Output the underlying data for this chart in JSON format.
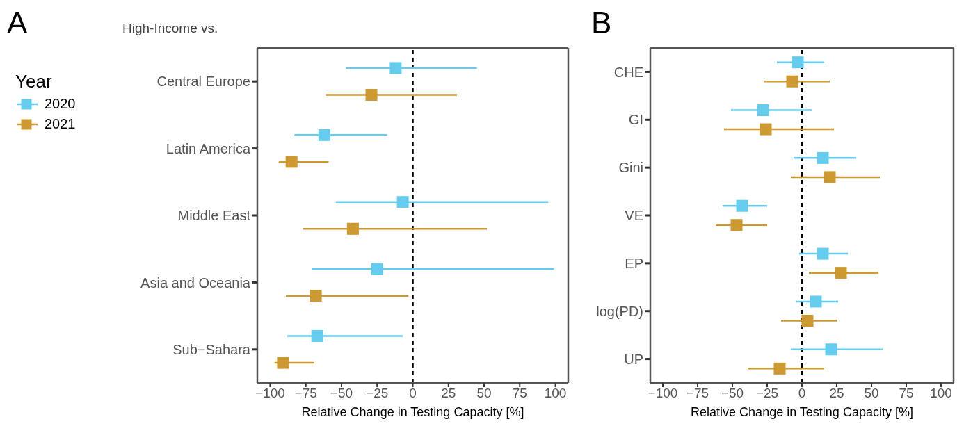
{
  "chart_data": [
    {
      "type": "scatter",
      "title": "A",
      "ylabel": "High-Income vs.",
      "xlabel": "Relative Change in Testing Capacity [%]",
      "orientation": "horizontal",
      "marker": "square",
      "legend": "left",
      "legend_title": "Year",
      "categories": [
        "Central Europe",
        "Latin America",
        "Middle East",
        "Asia and Oceania",
        "Sub−Sahara"
      ],
      "xlim": [
        -109,
        109
      ],
      "xticks": [
        {
          "value": -100,
          "label": "−100"
        },
        {
          "value": -75,
          "label": "−75"
        },
        {
          "value": -50,
          "label": "−50"
        },
        {
          "value": -25,
          "label": "−25"
        },
        0,
        25,
        50,
        75,
        100
      ],
      "ref_lines": [
        {
          "axis": "x",
          "value": 0,
          "color": "#000000",
          "line_style": "dashed"
        }
      ],
      "series": [
        {
          "name": "2020",
          "color": "#66ccee",
          "values": [
            -12,
            -62,
            -7,
            -25,
            -67
          ],
          "errors": [
            [
              -47,
              45
            ],
            [
              -83,
              -18
            ],
            [
              -54,
              95
            ],
            [
              -71,
              99
            ],
            [
              -88,
              -7
            ]
          ]
        },
        {
          "name": "2021",
          "color": "#cc9933",
          "values": [
            -29,
            -85,
            -42,
            -68,
            -91
          ],
          "errors": [
            [
              -61,
              31
            ],
            [
              -94,
              -59
            ],
            [
              -77,
              52
            ],
            [
              -89,
              -3
            ],
            [
              -97,
              -69
            ]
          ]
        }
      ]
    },
    {
      "type": "scatter",
      "title": "B",
      "xlabel": "Relative Change in Testing Capacity [%]",
      "orientation": "horizontal",
      "marker": "square",
      "categories": [
        "CHE",
        "GI",
        "Gini",
        "VE",
        "EP",
        "log(PD)",
        "UP"
      ],
      "xlim": [
        -109,
        109
      ],
      "xticks": [
        {
          "value": -100,
          "label": "−100"
        },
        {
          "value": -75,
          "label": "−75"
        },
        {
          "value": -50,
          "label": "−50"
        },
        {
          "value": -25,
          "label": "−25"
        },
        0,
        25,
        50,
        75,
        100
      ],
      "ref_lines": [
        {
          "axis": "x",
          "value": 0,
          "color": "#000000",
          "line_style": "dashed"
        }
      ],
      "series": [
        {
          "name": "2020",
          "color": "#66ccee",
          "values": [
            -3,
            -28,
            15,
            -43,
            15,
            10,
            21
          ],
          "errors": [
            [
              -18,
              16
            ],
            [
              -51,
              7
            ],
            [
              -6,
              39
            ],
            [
              -57,
              -25
            ],
            [
              -2,
              33
            ],
            [
              -4,
              26
            ],
            [
              -8,
              58
            ]
          ]
        },
        {
          "name": "2021",
          "color": "#cc9933",
          "values": [
            -7,
            -26,
            20,
            -47,
            28,
            4,
            -16
          ],
          "errors": [
            [
              -27,
              20
            ],
            [
              -56,
              23
            ],
            [
              -8,
              56
            ],
            [
              -62,
              -25
            ],
            [
              5,
              55
            ],
            [
              -15,
              25
            ],
            [
              -39,
              16
            ]
          ]
        }
      ]
    }
  ]
}
